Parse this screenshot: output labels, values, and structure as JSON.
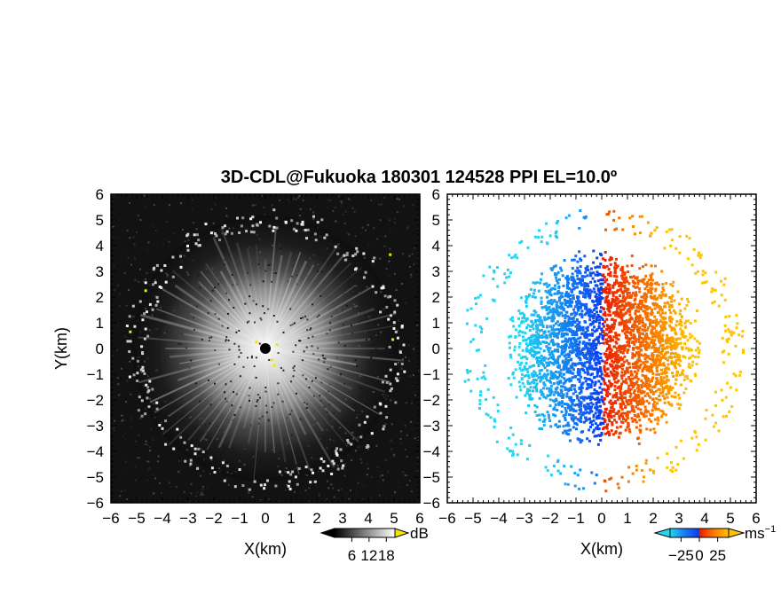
{
  "title": "3D-CDL@Fukuoka 180301 124528 PPI EL=10.0º",
  "chart_data": [
    {
      "type": "heatmap",
      "panel": "reflectivity",
      "xlabel": "X(km)",
      "ylabel": "Y(km)",
      "xlim": [
        -6,
        6
      ],
      "ylim": [
        -6,
        6
      ],
      "xticks": [
        -6,
        -5,
        -4,
        -3,
        -2,
        -1,
        0,
        1,
        2,
        3,
        4,
        5,
        6
      ],
      "yticks": [
        -6,
        -5,
        -4,
        -3,
        -2,
        -1,
        0,
        1,
        2,
        3,
        4,
        5,
        6
      ],
      "xtick_labels": [
        "−6",
        "−5",
        "−4",
        "−3",
        "−2",
        "−1",
        "0",
        "1",
        "2",
        "3",
        "4",
        "5",
        "6"
      ],
      "ytick_labels": [
        "−6",
        "−5",
        "−4",
        "−3",
        "−2",
        "−1",
        "0",
        "1",
        "2",
        "3",
        "4",
        "5",
        "6"
      ],
      "colormap": "grayscale",
      "colorbar": {
        "ticks": [
          6,
          12,
          18
        ],
        "tick_labels": [
          "6",
          "12",
          "18"
        ],
        "unit": "dB",
        "extend_high_color": "#f2e600"
      }
    },
    {
      "type": "heatmap",
      "panel": "doppler velocity",
      "xlabel": "X(km)",
      "ylabel": "",
      "xlim": [
        -6,
        6
      ],
      "ylim": [
        -6,
        6
      ],
      "xticks": [
        -6,
        -5,
        -4,
        -3,
        -2,
        -1,
        0,
        1,
        2,
        3,
        4,
        5,
        6
      ],
      "yticks": [
        -6,
        -5,
        -4,
        -3,
        -2,
        -1,
        0,
        1,
        2,
        3,
        4,
        5,
        6
      ],
      "xtick_labels": [
        "−6",
        "−5",
        "−4",
        "−3",
        "−2",
        "−1",
        "0",
        "1",
        "2",
        "3",
        "4",
        "5",
        "6"
      ],
      "ytick_labels": [
        "−6",
        "−5",
        "−4",
        "−3",
        "−2",
        "−1",
        "0",
        "1",
        "2",
        "3",
        "4",
        "5",
        "6"
      ],
      "colormap": "cyan-blue-red-orange-yellow diverging",
      "colorbar": {
        "ticks": [
          -25,
          0,
          25
        ],
        "tick_labels": [
          "−25",
          "0",
          "25"
        ],
        "unit": "ms",
        "unit_sup": "−1",
        "colors": [
          "#22d8f0",
          "#0a3cf0",
          "#e81e00",
          "#ffc400"
        ]
      }
    }
  ]
}
